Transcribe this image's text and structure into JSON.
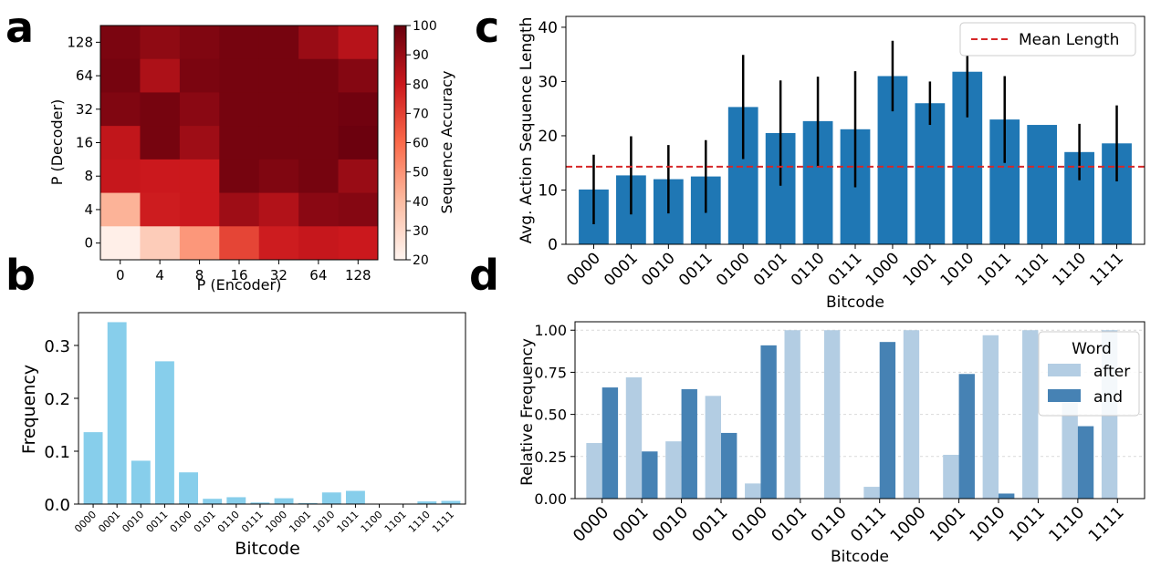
{
  "panel_labels": [
    "a",
    "b",
    "c",
    "d"
  ],
  "chart_data": [
    {
      "panel": "a",
      "type": "heatmap",
      "xlabel": "P (Encoder)",
      "ylabel": "P (Decoder)",
      "x_ticks": [
        "0",
        "4",
        "8",
        "16",
        "32",
        "64",
        "128"
      ],
      "y_ticks_top_to_bottom": [
        "128",
        "64",
        "32",
        "16",
        "8",
        "4",
        "0"
      ],
      "values_top_to_bottom": [
        [
          96,
          92,
          95,
          97,
          97,
          90,
          84
        ],
        [
          97,
          86,
          96,
          97,
          97,
          97,
          94
        ],
        [
          95,
          97,
          93,
          97,
          97,
          97,
          98
        ],
        [
          82,
          97,
          89,
          97,
          97,
          97,
          99
        ],
        [
          81,
          80,
          80,
          97,
          95,
          97,
          90
        ],
        [
          42,
          79,
          80,
          89,
          85,
          93,
          94
        ],
        [
          22,
          34,
          49,
          69,
          79,
          81,
          80
        ]
      ],
      "colorbar": {
        "label": "Sequence Accuracy",
        "range": [
          20,
          100
        ],
        "ticks": [
          "100",
          "90",
          "80",
          "70",
          "60",
          "50",
          "40",
          "30",
          "20"
        ]
      },
      "colormap": [
        "#fff5f0",
        "#fcbba1",
        "#fb6a4a",
        "#cb181d",
        "#67000d"
      ]
    },
    {
      "panel": "b",
      "type": "bar",
      "categories": [
        "0000",
        "0001",
        "0010",
        "0011",
        "0100",
        "0101",
        "0110",
        "0111",
        "1000",
        "1001",
        "1010",
        "1011",
        "1100",
        "1101",
        "1110",
        "1111"
      ],
      "values": [
        0.136,
        0.344,
        0.082,
        0.27,
        0.06,
        0.01,
        0.013,
        0.003,
        0.011,
        0.002,
        0.022,
        0.025,
        0.0,
        0.0,
        0.005,
        0.006
      ],
      "xlabel": "Bitcode",
      "ylabel": "Frequency",
      "ylim": [
        0,
        0.362
      ],
      "y_ticks": [
        0.0,
        0.1,
        0.2,
        0.3
      ],
      "y_tick_labels": [
        "0.0",
        "0.1",
        "0.2",
        "0.3"
      ],
      "color": "#87ceeb"
    },
    {
      "panel": "c",
      "type": "bar",
      "categories": [
        "0000",
        "0001",
        "0010",
        "0011",
        "0100",
        "0101",
        "0110",
        "0111",
        "1000",
        "1001",
        "1010",
        "1011",
        "1101",
        "1110",
        "1111"
      ],
      "values": [
        10.1,
        12.7,
        12.0,
        12.5,
        25.3,
        20.5,
        22.7,
        21.2,
        31.0,
        26.0,
        31.8,
        23.0,
        22.0,
        17.0,
        18.6
      ],
      "error_low": [
        6.4,
        7.2,
        6.3,
        6.7,
        9.6,
        9.7,
        8.4,
        10.7,
        6.5,
        4.0,
        8.4,
        8.0,
        0.0,
        5.2,
        7.0
      ],
      "error_high": [
        6.4,
        7.2,
        6.3,
        6.7,
        9.6,
        9.7,
        8.2,
        10.7,
        6.5,
        4.0,
        8.4,
        8.0,
        0.0,
        5.2,
        7.0
      ],
      "reference_line": {
        "value": 14.3,
        "label": "Mean Length",
        "color": "#d62728"
      },
      "xlabel": "Bitcode",
      "ylabel": "Avg. Action Sequence Length",
      "ylim": [
        0,
        42
      ],
      "y_ticks": [
        0,
        10,
        20,
        30,
        40
      ],
      "y_tick_labels": [
        "0",
        "10",
        "20",
        "30",
        "40"
      ],
      "color": "#1f77b4",
      "legend_position": "top-right"
    },
    {
      "panel": "d",
      "type": "bar",
      "categories": [
        "0000",
        "0001",
        "0010",
        "0011",
        "0100",
        "0101",
        "0110",
        "0111",
        "1000",
        "1001",
        "1010",
        "1011",
        "1110",
        "1111"
      ],
      "series": [
        {
          "name": "after",
          "color": "#b3cde3",
          "values": [
            0.33,
            0.72,
            0.34,
            0.61,
            0.09,
            1.0,
            1.0,
            0.07,
            1.0,
            0.26,
            0.97,
            1.0,
            0.57,
            1.0
          ]
        },
        {
          "name": "and",
          "color": "#4682b4",
          "values": [
            0.66,
            0.28,
            0.65,
            0.39,
            0.91,
            0.0,
            0.0,
            0.93,
            0.0,
            0.74,
            0.03,
            0.0,
            0.43,
            0.0
          ]
        }
      ],
      "legend_title": "Word",
      "legend_position": "top-right",
      "xlabel": "Bitcode",
      "ylabel": "Relative Frequency",
      "ylim": [
        0,
        1.05
      ],
      "y_ticks": [
        0.0,
        0.25,
        0.5,
        0.75,
        1.0
      ],
      "y_tick_labels": [
        "0.00",
        "0.25",
        "0.50",
        "0.75",
        "1.00"
      ],
      "grid": true
    }
  ]
}
